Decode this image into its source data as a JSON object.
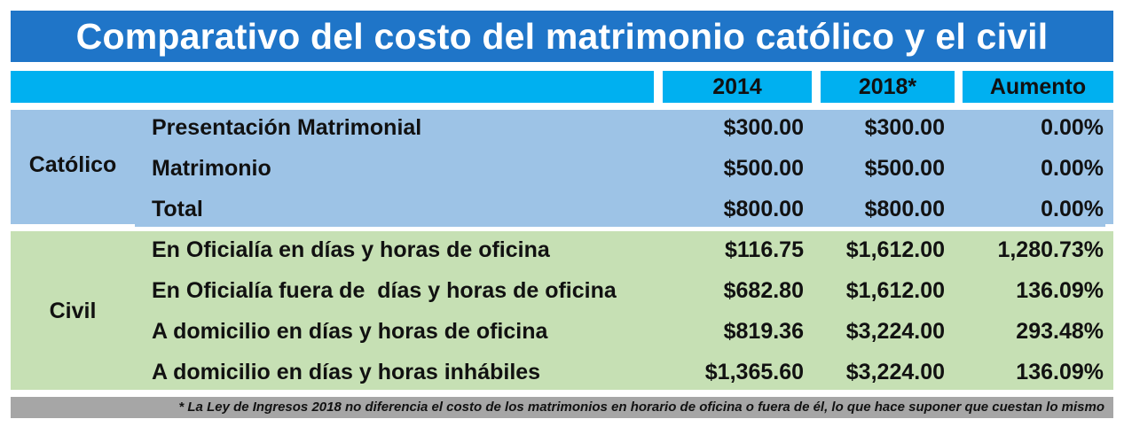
{
  "title": "Comparativo del costo del matrimonio católico y el civil",
  "chart_data": {
    "type": "table",
    "columns": [
      "2014",
      "2018*",
      "Aumento"
    ],
    "groups": [
      {
        "label": "Católico",
        "rows": [
          {
            "concept": "Presentación Matrimonial",
            "v2014": "$300.00",
            "v2018": "$300.00",
            "increase": "0.00%"
          },
          {
            "concept": "Matrimonio",
            "v2014": "$500.00",
            "v2018": "$500.00",
            "increase": "0.00%"
          },
          {
            "concept": "Total",
            "v2014": "$800.00",
            "v2018": "$800.00",
            "increase": "0.00%"
          }
        ]
      },
      {
        "label": "Civil",
        "rows": [
          {
            "concept": "En Oficialía en días y horas de oficina",
            "v2014": "$116.75",
            "v2018": "$1,612.00",
            "increase": "1,280.73%"
          },
          {
            "concept": "En Oficialía fuera de  días y horas de oficina",
            "v2014": "$682.80",
            "v2018": "$1,612.00",
            "increase": "136.09%"
          },
          {
            "concept": "A domicilio en días y horas de oficina",
            "v2014": "$819.36",
            "v2018": "$3,224.00",
            "increase": "293.48%"
          },
          {
            "concept": "A domicilio en días y horas inhábiles",
            "v2014": "$1,365.60",
            "v2018": "$3,224.00",
            "increase": "136.09%"
          }
        ]
      }
    ]
  },
  "footnote": "* La Ley de Ingresos 2018 no diferencia el costo de los matrimonios en horario de oficina o fuera de él, lo que hace suponer que cuestan lo mismo",
  "colors": {
    "title_bg": "#1f75c8",
    "header_bg": "#00b0f0",
    "catolico_bg": "#9dc3e6",
    "civil_bg": "#c6e0b4",
    "footnote_bg": "#a6a6a6"
  }
}
